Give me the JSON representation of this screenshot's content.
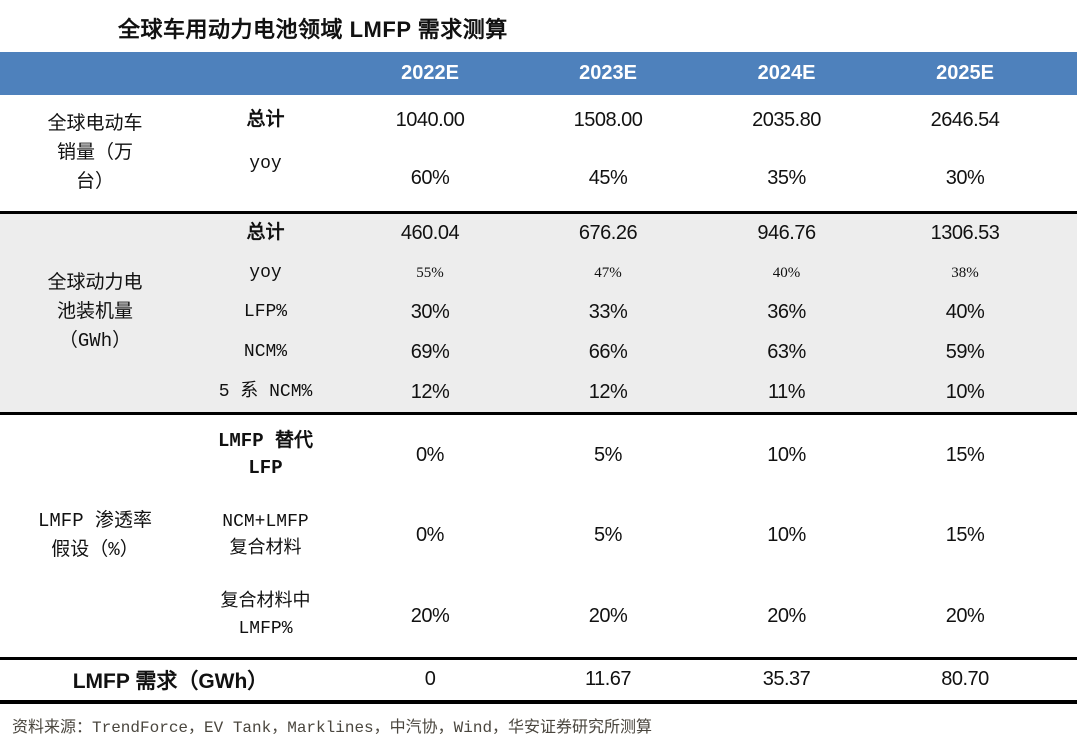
{
  "title": "全球车用动力电池领域 LMFP 需求测算",
  "colors": {
    "header_bg": "#4E81BC",
    "header_text": "#FFFFFF",
    "shaded_band_bg": "#EDEDED",
    "rule": "#000000",
    "source_text": "#4A463E"
  },
  "table": {
    "year_headers": [
      "2022E",
      "2023E",
      "2024E",
      "2025E"
    ],
    "sections": [
      {
        "group_lines": [
          "全球电动车",
          "销量（万",
          "台）"
        ],
        "shaded": false,
        "rows": [
          {
            "label_lines": [
              "总计"
            ],
            "bold": true,
            "small": false,
            "values": [
              "1040.00",
              "1508.00",
              "2035.80",
              "2646.54"
            ]
          },
          {
            "label_lines": [
              "yoy"
            ],
            "bold": false,
            "small": false,
            "values": [
              "60%",
              "45%",
              "35%",
              "30%"
            ]
          }
        ]
      },
      {
        "group_lines": [
          "全球动力电",
          "池装机量",
          "（GWh）"
        ],
        "shaded": true,
        "rows": [
          {
            "label_lines": [
              "总计"
            ],
            "bold": true,
            "small": false,
            "values": [
              "460.04",
              "676.26",
              "946.76",
              "1306.53"
            ]
          },
          {
            "label_lines": [
              "yoy"
            ],
            "bold": false,
            "small": true,
            "values": [
              "55%",
              "47%",
              "40%",
              "38%"
            ]
          },
          {
            "label_lines": [
              "LFP%"
            ],
            "bold": false,
            "small": false,
            "values": [
              "30%",
              "33%",
              "36%",
              "40%"
            ]
          },
          {
            "label_lines": [
              "NCM%"
            ],
            "bold": false,
            "small": false,
            "values": [
              "69%",
              "66%",
              "63%",
              "59%"
            ]
          },
          {
            "label_lines": [
              "5 系 NCM%"
            ],
            "bold": false,
            "small": false,
            "values": [
              "12%",
              "12%",
              "11%",
              "10%"
            ]
          }
        ]
      },
      {
        "group_lines": [
          "LMFP 渗透率",
          "假设（%）"
        ],
        "shaded": false,
        "rows": [
          {
            "label_lines": [
              "LMFP 替代",
              "LFP"
            ],
            "bold": true,
            "small": false,
            "values": [
              "0%",
              "5%",
              "10%",
              "15%"
            ]
          },
          {
            "label_lines": [
              "NCM+LMFP",
              "复合材料"
            ],
            "bold": false,
            "small": false,
            "values": [
              "0%",
              "5%",
              "10%",
              "15%"
            ]
          },
          {
            "label_lines": [
              "复合材料中",
              "LMFP%"
            ],
            "bold": false,
            "small": false,
            "values": [
              "20%",
              "20%",
              "20%",
              "20%"
            ]
          }
        ]
      }
    ],
    "summary_row": {
      "label": "LMFP 需求（GWh）",
      "values": [
        "0",
        "11.67",
        "35.37",
        "80.70"
      ]
    }
  },
  "footer": {
    "source": "资料来源：TrendForce，EV Tank，Marklines，中汽协，Wind，华安证券研究所测算"
  },
  "chart_data": {
    "type": "table",
    "title": "全球车用动力电池领域 LMFP 需求测算",
    "columns": [
      "指标组",
      "指标",
      "2022E",
      "2023E",
      "2024E",
      "2025E"
    ],
    "rows": [
      [
        "全球电动车销量（万台）",
        "总计",
        "1040.00",
        "1508.00",
        "2035.80",
        "2646.54"
      ],
      [
        "全球电动车销量（万台）",
        "yoy",
        "60%",
        "45%",
        "35%",
        "30%"
      ],
      [
        "全球动力电池装机量（GWh）",
        "总计",
        "460.04",
        "676.26",
        "946.76",
        "1306.53"
      ],
      [
        "全球动力电池装机量（GWh）",
        "yoy",
        "55%",
        "47%",
        "40%",
        "38%"
      ],
      [
        "全球动力电池装机量（GWh）",
        "LFP%",
        "30%",
        "33%",
        "36%",
        "40%"
      ],
      [
        "全球动力电池装机量（GWh）",
        "NCM%",
        "69%",
        "66%",
        "63%",
        "59%"
      ],
      [
        "全球动力电池装机量（GWh）",
        "5 系 NCM%",
        "12%",
        "12%",
        "11%",
        "10%"
      ],
      [
        "LMFP 渗透率假设（%）",
        "LMFP 替代 LFP",
        "0%",
        "5%",
        "10%",
        "15%"
      ],
      [
        "LMFP 渗透率假设（%）",
        "NCM+LMFP 复合材料",
        "0%",
        "5%",
        "10%",
        "15%"
      ],
      [
        "LMFP 渗透率假设（%）",
        "复合材料中 LMFP%",
        "20%",
        "20%",
        "20%",
        "20%"
      ],
      [
        "LMFP 需求（GWh）",
        "",
        "0",
        "11.67",
        "35.37",
        "80.70"
      ]
    ],
    "source": "资料来源：TrendForce，EV Tank，Marklines，中汽协，Wind，华安证券研究所测算"
  }
}
